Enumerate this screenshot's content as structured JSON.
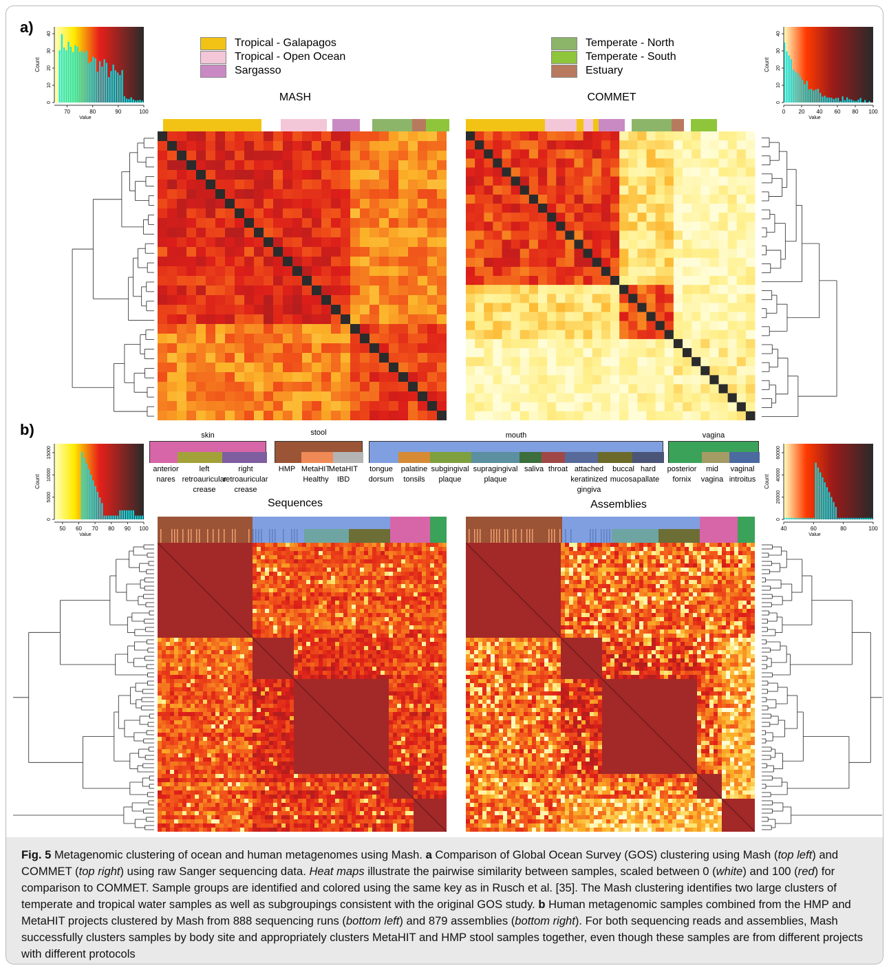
{
  "panel_a": {
    "label": "a)",
    "legend_left": [
      {
        "label": "Tropical - Galapagos",
        "color": "#f2c315"
      },
      {
        "label": "Tropical - Open Ocean",
        "color": "#f3c6d8"
      },
      {
        "label": "Sargasso",
        "color": "#c98ac4"
      }
    ],
    "legend_right": [
      {
        "label": "Temperate - North",
        "color": "#8cb56a"
      },
      {
        "label": "Temperate - South",
        "color": "#8ec53b"
      },
      {
        "label": "Estuary",
        "color": "#b87a5e"
      }
    ],
    "mash_title": "MASH",
    "commet_title": "COMMET",
    "hist_left": {
      "ylabel": "Count",
      "xlabel": "Value",
      "xticks": [
        "70",
        "80",
        "90",
        "100"
      ],
      "yticks": [
        "0",
        "10",
        "20",
        "30",
        "40"
      ]
    },
    "hist_right": {
      "ylabel": "Count",
      "xlabel": "Value",
      "xticks": [
        "0",
        "20",
        "40",
        "60",
        "80",
        "100"
      ],
      "yticks": [
        "0",
        "10",
        "20",
        "30",
        "40"
      ]
    }
  },
  "panel_b": {
    "label": "b)",
    "groups": [
      {
        "title": "skin",
        "subs": [
          "anterior\nnares",
          "left\nretroauricular\ncrease",
          "right\nretroauricular\ncrease"
        ]
      },
      {
        "title": "stool",
        "subs": [
          "HMP",
          "MetaHIT\nHealthy",
          "MetaHIT\nIBD"
        ]
      },
      {
        "title": "mouth",
        "subs": [
          "tongue\ndorsum",
          "palatine\ntonsils",
          "subgingival\nplaque",
          "supragingival\nplaque",
          "saliva",
          "throat",
          "attached\nkeratinized\ngingiva",
          "buccal\nmucosa",
          "hard\npallate"
        ]
      },
      {
        "title": "vagina",
        "subs": [
          "posterior\nfornix",
          "mid\nvagina",
          "vaginal\nintroitus"
        ]
      }
    ],
    "seq_title": "Sequences",
    "asm_title": "Assemblies",
    "hist_left": {
      "ylabel": "Count",
      "xlabel": "Value",
      "xticks": [
        "50",
        "60",
        "70",
        "80",
        "90",
        "100"
      ],
      "yticks": [
        "0",
        "5000",
        "10000",
        "15000"
      ]
    },
    "hist_right": {
      "ylabel": "Count",
      "xlabel": "Value",
      "xticks": [
        "40",
        "60",
        "80",
        "100"
      ],
      "yticks": [
        "0",
        "20000",
        "40000",
        "60000"
      ]
    }
  },
  "caption": {
    "fig": "Fig. 5",
    "title": " Metagenomic clustering of ocean and human metagenomes using Mash. ",
    "a": "a",
    "a_text1": " Comparison of Global Ocean Survey (GOS) clustering using Mash (",
    "a_tl": "top left",
    "a_text2": ") and COMMET (",
    "a_tr": "top right",
    "a_text3": ") using raw Sanger sequencing data. ",
    "heat": "Heat maps",
    "a_text4": " illustrate the pairwise similarity between samples, scaled between 0 (",
    "white": "white",
    "a_text5": ") and 100 (",
    "red": "red",
    "a_text6": ") for comparison to COMMET. Sample groups are identified and colored using the same key as in Rusch et al. [35]. The Mash clustering identifies two large clusters of temperate and tropical water samples as well as subgroupings consistent with the original GOS study. ",
    "b": "b",
    "b_text1": " Human metagenomic samples combined from the HMP and MetaHIT projects clustered by Mash from 888 sequencing runs (",
    "b_bl": "bottom left",
    "b_text2": ") and 879 assemblies (",
    "b_br": "bottom right",
    "b_text3": "). For both sequencing reads and assemblies, Mash successfully clusters samples by body site and appropriately clusters MetaHIT and HMP stool samples together, even though these samples are from different projects with different protocols"
  },
  "colors": {
    "heat_high": "#c8201a",
    "heat_mid": "#f4861c",
    "heat_low": "#fff2b0",
    "diag": "#2b2b2b",
    "hist_fill": "#00e5ee"
  }
}
